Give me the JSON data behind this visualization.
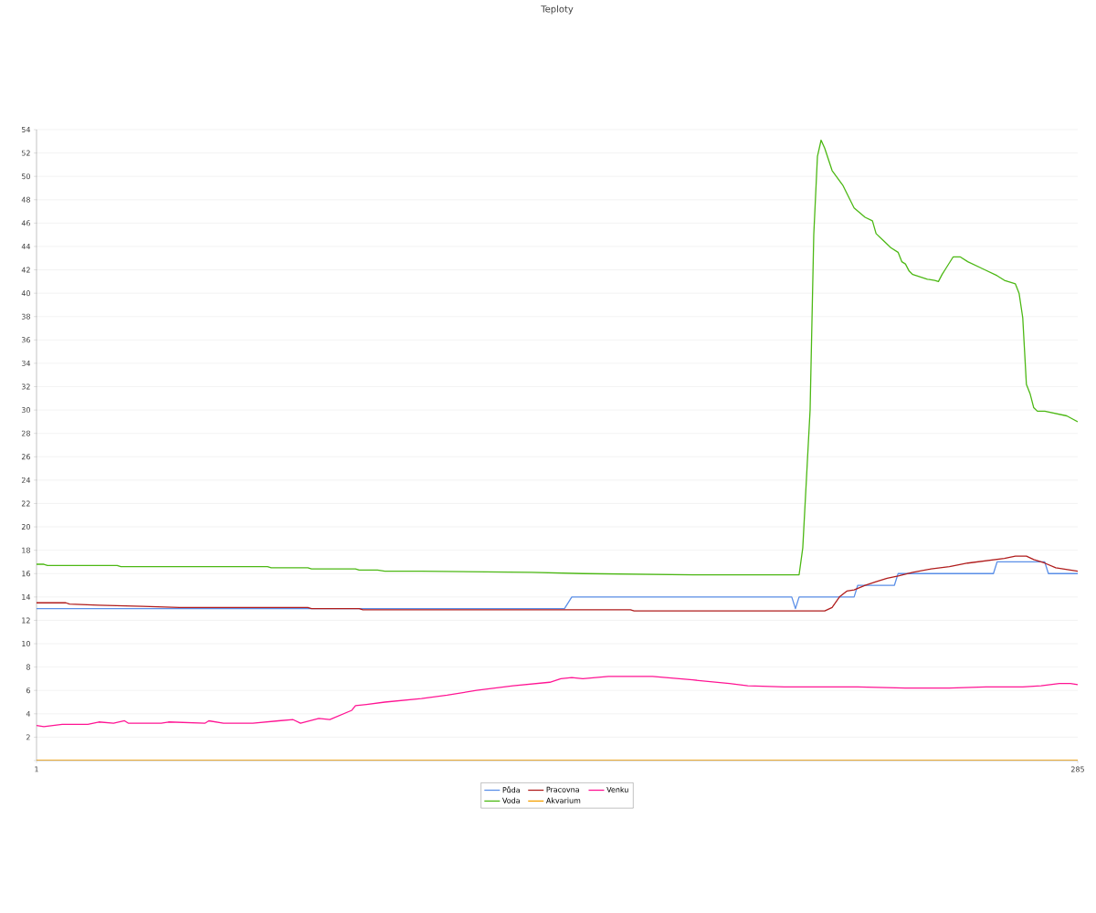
{
  "chart_data": {
    "type": "line",
    "title": "Teploty",
    "xlim": [
      1,
      285
    ],
    "xticks": [
      1,
      285
    ],
    "ylim": [
      0,
      54
    ],
    "yticks": [
      {
        "value": 0,
        "label": null
      },
      2,
      4,
      6,
      8,
      10,
      12,
      14,
      16,
      18,
      20,
      22,
      24,
      26,
      28,
      30,
      32,
      34,
      36,
      38,
      40,
      42,
      44,
      46,
      48,
      50,
      52,
      54
    ],
    "grid": "y",
    "legend": "bottom",
    "marker": "none",
    "line_style": "solid",
    "series": [
      {
        "name": "Půda",
        "color": "#5b8fe8",
        "x": [
          1,
          145,
          147,
          207,
          208,
          209,
          224,
          225,
          235,
          236,
          262,
          263,
          276,
          277,
          285
        ],
        "values": [
          13.0,
          13.0,
          14.0,
          14.0,
          13.0,
          14.0,
          14.0,
          15.0,
          15.0,
          16.0,
          16.0,
          17.0,
          17.0,
          16.0,
          16.0
        ]
      },
      {
        "name": "Pracovna",
        "color": "#b01c1c",
        "x": [
          1,
          9,
          10,
          18,
          30,
          40,
          75,
          76,
          89,
          90,
          163,
          164,
          183,
          216,
          218,
          220,
          222,
          224,
          227,
          230,
          233,
          236,
          240,
          245,
          250,
          255,
          260,
          265,
          268,
          271,
          273,
          276,
          279,
          283,
          285
        ],
        "values": [
          13.5,
          13.5,
          13.4,
          13.3,
          13.2,
          13.1,
          13.1,
          13.0,
          13.0,
          12.9,
          12.9,
          12.8,
          12.8,
          12.8,
          13.1,
          14.0,
          14.5,
          14.6,
          15.0,
          15.3,
          15.6,
          15.8,
          16.1,
          16.4,
          16.6,
          16.9,
          17.1,
          17.3,
          17.5,
          17.5,
          17.2,
          16.9,
          16.5,
          16.3,
          16.2
        ]
      },
      {
        "name": "Venku",
        "color": "#ff1493",
        "x": [
          1,
          3,
          8,
          15,
          18,
          22,
          25,
          26,
          35,
          37,
          47,
          48,
          52,
          60,
          67,
          71,
          73,
          78,
          81,
          87,
          88,
          91,
          96,
          106,
          113,
          121,
          131,
          141,
          144,
          147,
          150,
          157,
          169,
          180,
          190,
          195,
          205,
          215,
          225,
          238,
          250,
          260,
          270,
          275,
          280,
          283,
          285
        ],
        "values": [
          3.0,
          2.9,
          3.1,
          3.1,
          3.3,
          3.2,
          3.4,
          3.2,
          3.2,
          3.3,
          3.2,
          3.4,
          3.2,
          3.2,
          3.4,
          3.5,
          3.2,
          3.6,
          3.5,
          4.3,
          4.7,
          4.8,
          5.0,
          5.3,
          5.6,
          6.0,
          6.4,
          6.7,
          7.0,
          7.1,
          7.0,
          7.2,
          7.2,
          6.9,
          6.6,
          6.4,
          6.3,
          6.3,
          6.3,
          6.2,
          6.2,
          6.3,
          6.3,
          6.4,
          6.6,
          6.6,
          6.5
        ]
      },
      {
        "name": "Voda",
        "color": "#4cb814",
        "x": [
          1,
          3,
          4,
          23,
          24,
          64,
          65,
          75,
          76,
          88,
          89,
          94,
          96,
          106,
          136,
          150,
          180,
          209,
          210,
          212,
          213,
          214,
          215,
          216,
          218,
          221,
          224,
          227,
          229,
          230,
          232,
          234,
          236,
          237,
          238,
          239,
          240,
          244,
          246,
          247,
          248,
          249,
          251,
          253,
          255,
          259,
          263,
          265,
          266,
          268,
          269,
          270,
          271,
          272,
          273,
          274,
          276,
          282,
          285
        ],
        "values": [
          16.8,
          16.8,
          16.7,
          16.7,
          16.6,
          16.6,
          16.5,
          16.5,
          16.4,
          16.4,
          16.3,
          16.3,
          16.2,
          16.2,
          16.1,
          16.0,
          15.9,
          15.9,
          18.2,
          30.0,
          45.0,
          51.7,
          53.1,
          52.4,
          50.5,
          49.2,
          47.3,
          46.5,
          46.2,
          45.1,
          44.5,
          43.9,
          43.5,
          42.7,
          42.5,
          41.9,
          41.6,
          41.2,
          41.1,
          41.0,
          41.6,
          42.1,
          43.1,
          43.1,
          42.7,
          42.1,
          41.5,
          41.1,
          41.0,
          40.8,
          40.0,
          37.9,
          32.2,
          31.4,
          30.2,
          29.9,
          29.9,
          29.5,
          29.0
        ]
      },
      {
        "name": "Akvarium",
        "color": "#f5a000",
        "x": [
          1,
          285
        ],
        "values": [
          0,
          0
        ]
      }
    ]
  }
}
